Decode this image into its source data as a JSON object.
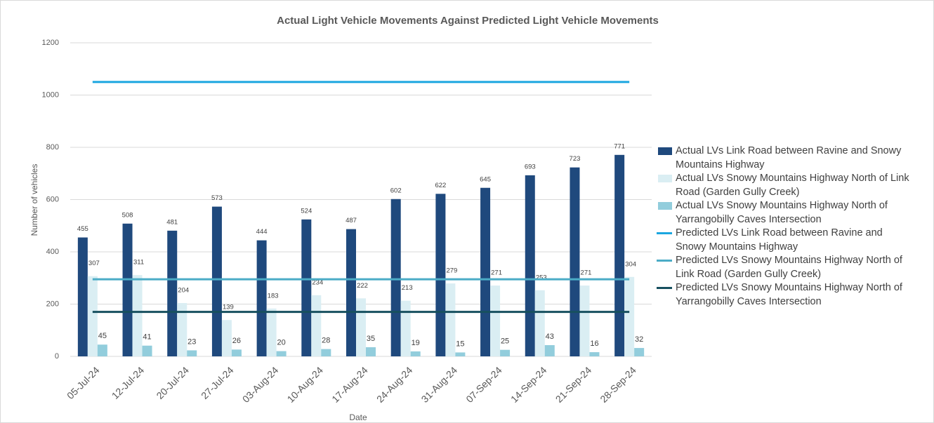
{
  "chart_data": {
    "type": "bar",
    "title": "Actual Light Vehicle Movements Against Predicted Light Vehicle Movements",
    "ylabel": "Number of vehicles",
    "xlabel": "Date",
    "categories": [
      "05-Jul-24",
      "12-Jul-24",
      "20-Jul-24",
      "27-Jul-24",
      "03-Aug-24",
      "10-Aug-24",
      "17-Aug-24",
      "24-Aug-24",
      "31-Aug-24",
      "07-Sep-24",
      "14-Sep-24",
      "21-Sep-24",
      "28-Sep-24"
    ],
    "series": [
      {
        "name": "Actual LVs Link Road between Ravine and Snowy Mountains Highway",
        "type": "bar",
        "color": "#1f497d",
        "values": [
          455,
          508,
          481,
          573,
          444,
          524,
          487,
          602,
          622,
          645,
          693,
          723,
          771
        ]
      },
      {
        "name": "Actual LVs Snowy Mountains Highway North of Link Road (Garden Gully Creek)",
        "type": "bar",
        "color": "#daeef3",
        "values": [
          307,
          311,
          204,
          139,
          183,
          234,
          222,
          213,
          279,
          271,
          253,
          271,
          304
        ]
      },
      {
        "name": "Actual LVs Snowy Mountains Highway North of Yarrangobilly Caves Intersection",
        "type": "bar",
        "color": "#92cddc",
        "values": [
          45,
          41,
          23,
          26,
          20,
          28,
          35,
          19,
          15,
          25,
          43,
          16,
          32
        ]
      },
      {
        "name": "Predicted LVs Link Road between Ravine and Snowy Mountains Highway",
        "type": "line",
        "color": "#1ba6e0",
        "values": [
          1050,
          1050,
          1050,
          1050,
          1050,
          1050,
          1050,
          1050,
          1050,
          1050,
          1050,
          1050,
          1050
        ]
      },
      {
        "name": "Predicted LVs Snowy Mountains Highway North of Link Road (Garden Gully Creek)",
        "type": "line",
        "color": "#4bacc6",
        "values": [
          295,
          295,
          295,
          295,
          295,
          295,
          295,
          295,
          295,
          295,
          295,
          295,
          295
        ]
      },
      {
        "name": "Predicted LVs Snowy Mountains Highway North of Yarrangobilly Caves Intersection",
        "type": "line",
        "color": "#17505f",
        "values": [
          170,
          170,
          170,
          170,
          170,
          170,
          170,
          170,
          170,
          170,
          170,
          170,
          170
        ]
      }
    ],
    "ylim": [
      0,
      1200
    ],
    "yticks": [
      0,
      200,
      400,
      600,
      800,
      1000,
      1200
    ],
    "grid": true,
    "legend": "right"
  }
}
